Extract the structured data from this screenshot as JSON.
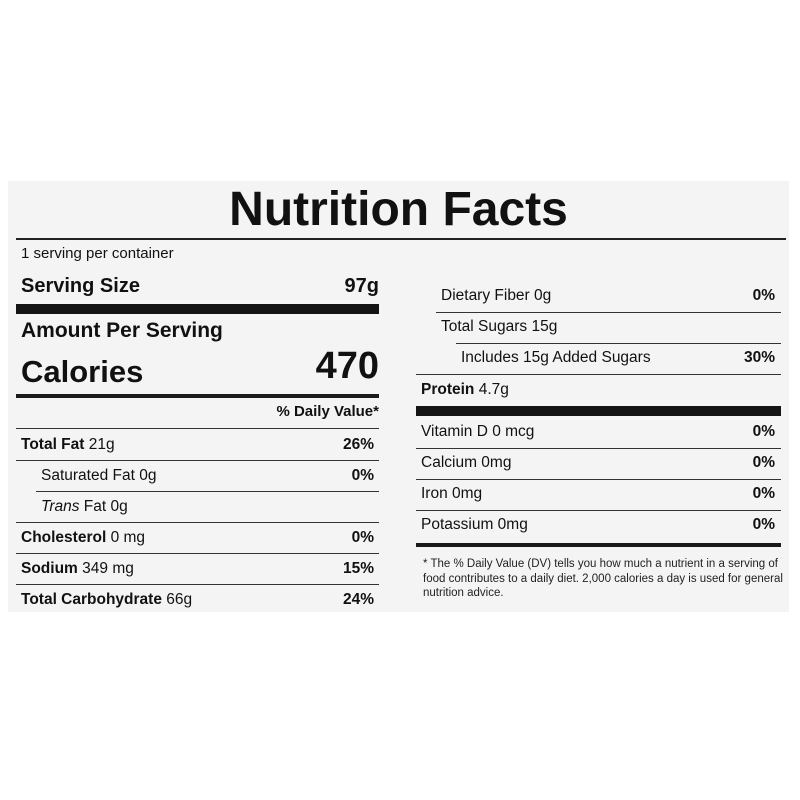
{
  "label": {
    "title": "Nutrition Facts",
    "servings_per_container": "1 serving per container",
    "serving_size_label": "Serving Size",
    "serving_size_value": "97g",
    "amount_per_serving": "Amount Per Serving",
    "calories_label": "Calories",
    "calories_value": "470",
    "daily_value_header": "% Daily Value*",
    "left_rows": [
      {
        "name_bold": "Total Fat",
        "name": " 21g",
        "pct": "26%"
      },
      {
        "name": "Saturated Fat 0g",
        "pct": "0%"
      },
      {
        "name_italic": "Trans",
        "name": " Fat 0g",
        "pct": ""
      },
      {
        "name_bold": "Cholesterol",
        "name": " 0 mg",
        "pct": "0%"
      },
      {
        "name_bold": "Sodium",
        "name": " 349 mg",
        "pct": "15%"
      },
      {
        "name_bold": "Total Carbohydrate",
        "name": " 66g",
        "pct": "24%"
      }
    ],
    "right_rows": [
      {
        "name": "Dietary Fiber 0g",
        "pct": "0%"
      },
      {
        "name": "Total Sugars 15g",
        "pct": ""
      },
      {
        "name": "Includes 15g Added Sugars",
        "pct": "30%"
      },
      {
        "name_bold": "Protein",
        "name": " 4.7g",
        "pct": ""
      }
    ],
    "vitamin_rows": [
      {
        "name": "Vitamin D 0 mcg",
        "pct": "0%"
      },
      {
        "name": "Calcium 0mg",
        "pct": "0%"
      },
      {
        "name": "Iron 0mg",
        "pct": "0%"
      },
      {
        "name": "Potassium 0mg",
        "pct": "0%"
      }
    ],
    "footnote": "* The % Daily Value (DV) tells you how much a nutrient in a serving of food contributes to a daily diet. 2,000 calories a day is used for general nutrition advice."
  }
}
